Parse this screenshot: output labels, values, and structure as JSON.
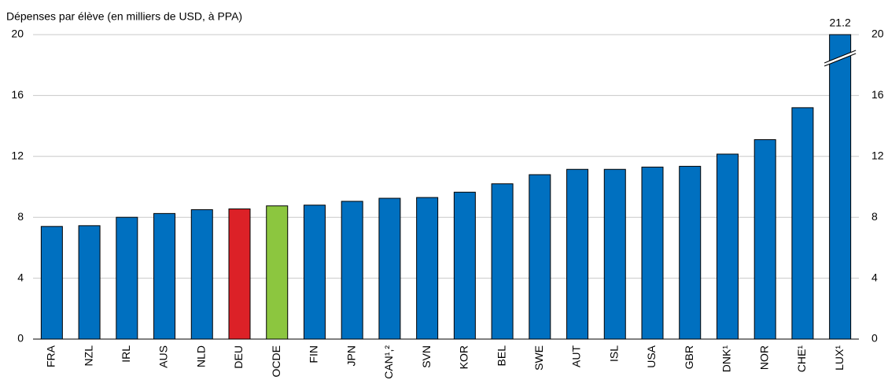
{
  "chart_data": {
    "type": "bar",
    "y_label": "Dépenses par élève (en milliers de USD, à PPA)",
    "categories": [
      "FRA",
      "NZL",
      "IRL",
      "AUS",
      "NLD",
      "DEU",
      "OCDE",
      "FIN",
      "JPN",
      "CAN¹,²",
      "SVN",
      "KOR",
      "BEL",
      "SWE",
      "AUT",
      "ISL",
      "USA",
      "GBR",
      "DNK¹",
      "NOR",
      "CHE¹",
      "LUX¹"
    ],
    "values": [
      7.4,
      7.45,
      8.0,
      8.25,
      8.5,
      8.55,
      8.75,
      8.8,
      9.05,
      9.25,
      9.3,
      9.65,
      10.2,
      10.8,
      11.15,
      11.15,
      11.3,
      11.35,
      12.15,
      13.1,
      15.2,
      21.2
    ],
    "colors": [
      "#0070c0",
      "#0070c0",
      "#0070c0",
      "#0070c0",
      "#0070c0",
      "#dc2127",
      "#8cc63f",
      "#0070c0",
      "#0070c0",
      "#0070c0",
      "#0070c0",
      "#0070c0",
      "#0070c0",
      "#0070c0",
      "#0070c0",
      "#0070c0",
      "#0070c0",
      "#0070c0",
      "#0070c0",
      "#0070c0",
      "#0070c0",
      "#0070c0"
    ],
    "ylim": [
      0,
      20
    ],
    "yticks": [
      0,
      4,
      8,
      12,
      16,
      20
    ],
    "y2lim": [
      0,
      20
    ],
    "y2ticks": [
      0,
      4,
      8,
      12,
      16,
      20
    ],
    "grid": true
  }
}
